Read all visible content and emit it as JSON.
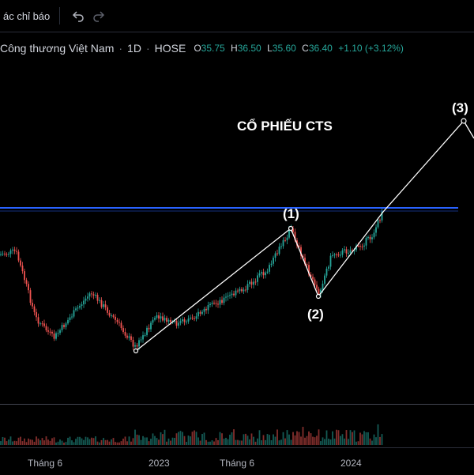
{
  "toolbar": {
    "indicators_label": "ác chỉ báo",
    "undo_icon": "undo-icon",
    "redo_icon": "redo-icon"
  },
  "legend": {
    "symbol_name": "Công thương Việt Nam",
    "interval": "1D",
    "exchange": "HOSE",
    "open_key": "O",
    "open": "35.75",
    "high_key": "H",
    "high": "36.50",
    "low_key": "L",
    "low": "35.60",
    "close_key": "C",
    "close": "36.40",
    "change": "+1.10 (+3.12%)"
  },
  "annotations": {
    "title": "CỔ PHIẾU CTS",
    "wave1": "(1)",
    "wave2": "(2)",
    "wave3": "(3)"
  },
  "x_axis": {
    "ticks": [
      "Tháng 6",
      "2023",
      "Tháng 6",
      "2024"
    ]
  },
  "colors": {
    "up": "#26a69a",
    "down": "#ef5350",
    "resistance_line": "#2962ff",
    "wave_line": "#ffffff",
    "background": "#000000"
  }
}
